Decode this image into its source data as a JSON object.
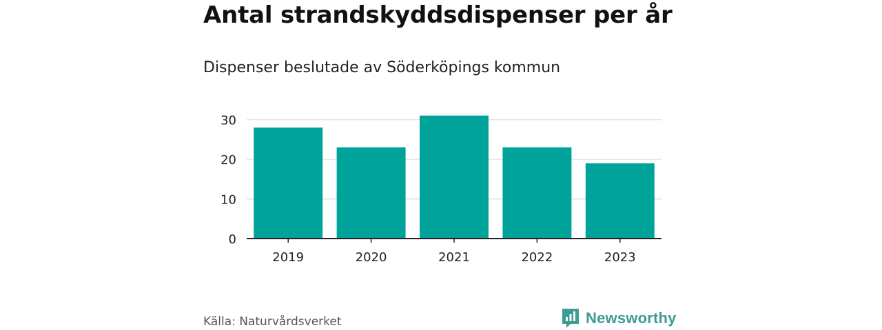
{
  "title": "Antal strandskyddsdispenser per år",
  "subtitle": "Dispenser beslutade av Söderköpings kommun",
  "source": "Källa: Naturvårdsverket",
  "brand": "Newsworthy",
  "colors": {
    "bar": "#00a39a",
    "brand": "#3d9c93",
    "grid": "#dddddd",
    "axis": "#222222"
  },
  "chart_data": {
    "type": "bar",
    "categories": [
      "2019",
      "2020",
      "2021",
      "2022",
      "2023"
    ],
    "values": [
      28,
      23,
      31,
      23,
      19
    ],
    "xlabel": "",
    "ylabel": "",
    "ylim": [
      0,
      30
    ],
    "yticks": [
      "0",
      "10",
      "20",
      "30"
    ],
    "grid": true,
    "legend": "none"
  }
}
